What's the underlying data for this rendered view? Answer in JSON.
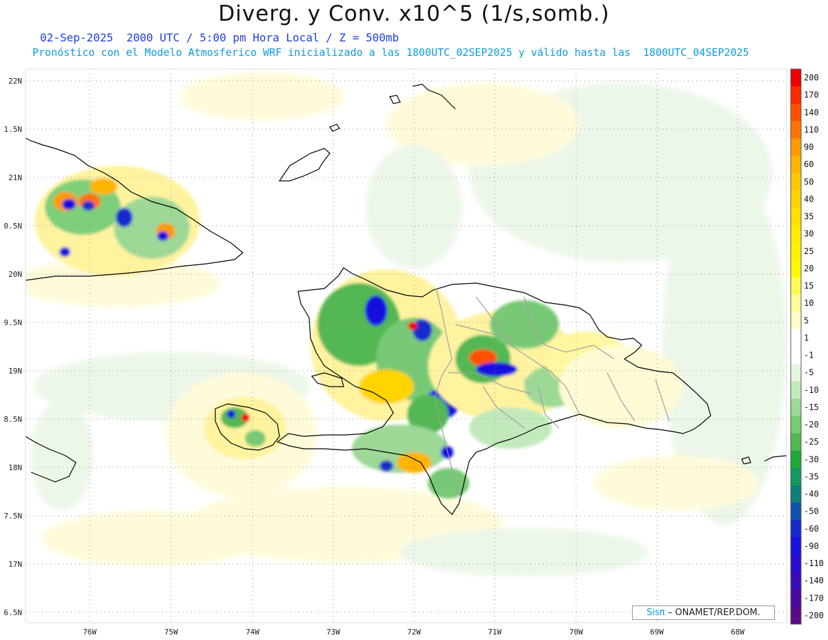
{
  "title": "Diverg. y Conv. x10^5 (1/s,somb.)",
  "subtitle_time": "02-Sep-2025  2000 UTC / 5:00 pm Hora Local / Z = 500mb",
  "subtitle_model": "Pronóstico con el Modelo Atmosferico WRF inicializado a las 1800UTC_02SEP2025 y válido hasta las  1800UTC_04SEP2025",
  "lat_labels": [
    "22N",
    "1.5N",
    "21N",
    "0.5N",
    "20N",
    "9.5N",
    "19N",
    "8.5N",
    "18N",
    "7.5N",
    "17N",
    "6.5N"
  ],
  "lon_labels": [
    "76W",
    "75W",
    "74W",
    "73W",
    "72W",
    "71W",
    "70W",
    "69W",
    "68W"
  ],
  "legend": {
    "labels": [
      "200",
      "170",
      "140",
      "110",
      "90",
      "60",
      "50",
      "40",
      "35",
      "30",
      "25",
      "20",
      "15",
      "10",
      "5",
      "1",
      "-1",
      "-5",
      "-10",
      "-15",
      "-20",
      "-25",
      "-30",
      "-35",
      "-40",
      "-50",
      "-60",
      "-90",
      "-110",
      "-140",
      "-170",
      "-200"
    ],
    "colors": [
      "#ee0000",
      "#ff2a00",
      "#ff5000",
      "#ff7400",
      "#ff9a00",
      "#ffb400",
      "#ffc800",
      "#ffd400",
      "#ffe000",
      "#ffea00",
      "#fff200",
      "#fff800",
      "#fffa55",
      "#fffc9a",
      "#fffdc8",
      "#ffffff",
      "#ffffff",
      "#e6f5e2",
      "#c2e9bb",
      "#9dd896",
      "#78c974",
      "#52b752",
      "#1ea83a",
      "#139a5e",
      "#0d7f7a",
      "#1150ad",
      "#1629cc",
      "#1810df",
      "#2a0cd0",
      "#3a0ab8",
      "#4a079f",
      "#5a0a88"
    ]
  },
  "credit": {
    "logo": "Sisπ",
    "text": "– ONAMET/REP.DOM."
  },
  "features": {
    "coastline_color": "#000000",
    "province_border_color": "#a0a0a0",
    "gridline_color": "#888888"
  }
}
